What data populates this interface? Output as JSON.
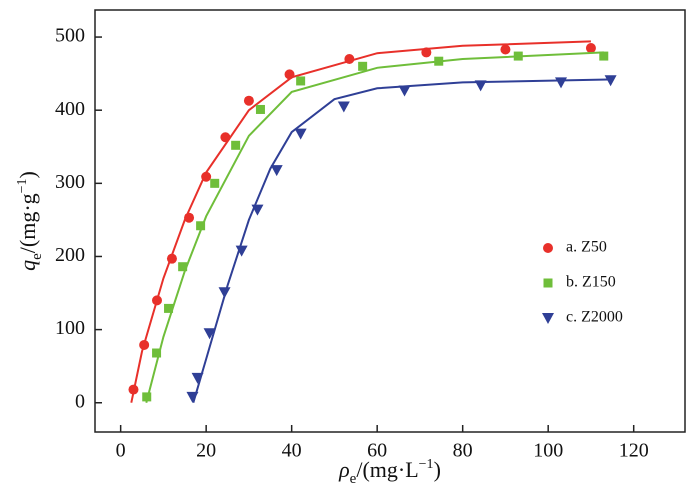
{
  "chart_data": {
    "type": "scatter",
    "xlabel_parts": [
      "ρ",
      "e",
      "/(mg·L",
      "−1",
      ")"
    ],
    "ylabel_parts": [
      "q",
      "e",
      "/(mg·g",
      "−1",
      ")"
    ],
    "xlim": [
      -6,
      132
    ],
    "ylim": [
      -40,
      537
    ],
    "xticks": [
      0,
      20,
      40,
      60,
      80,
      100,
      120
    ],
    "yticks": [
      0,
      100,
      200,
      300,
      400,
      500
    ],
    "legend": "right",
    "series": [
      {
        "name": "a. Z50",
        "color": "#e8302a",
        "marker": "circle",
        "x": [
          3.0,
          5.5,
          8.5,
          12,
          16,
          20,
          24.5,
          30,
          39.5,
          53.5,
          71.5,
          90,
          110
        ],
        "values": [
          18,
          79,
          140,
          197,
          253,
          309,
          363,
          413,
          449,
          470,
          479,
          483,
          485
        ],
        "fit_x": [
          2.5,
          5,
          10,
          15,
          20,
          30,
          40,
          60,
          80,
          110
        ],
        "fit_y": [
          0,
          70,
          170,
          250,
          315,
          400,
          445,
          478,
          488,
          494
        ]
      },
      {
        "name": "b. Z150",
        "color": "#6fbe3a",
        "marker": "square",
        "x": [
          6.1,
          8.4,
          11.2,
          14.5,
          18.7,
          22,
          26.9,
          32.7,
          42.1,
          56.6,
          74.4,
          93,
          113
        ],
        "values": [
          8,
          68,
          129,
          186,
          242,
          300,
          352,
          401,
          440,
          460,
          467,
          474,
          474
        ],
        "fit_x": [
          6,
          10,
          15,
          20,
          30,
          40,
          60,
          80,
          113
        ],
        "fit_y": [
          0,
          90,
          180,
          255,
          365,
          425,
          458,
          470,
          479
        ]
      },
      {
        "name": "c. Z2000",
        "color": "#2f3f96",
        "marker": "triangle-down",
        "x": [
          16.8,
          18,
          20.8,
          24.3,
          28.3,
          32,
          36.5,
          42.1,
          52.2,
          66.4,
          84.2,
          103,
          114.6
        ],
        "values": [
          8,
          34,
          95,
          151,
          208,
          264,
          318,
          368,
          405,
          427,
          434,
          438,
          441
        ],
        "fit_x": [
          17,
          20,
          25,
          30,
          35,
          40,
          50,
          60,
          80,
          114
        ],
        "fit_y": [
          0,
          60,
          160,
          250,
          320,
          370,
          415,
          430,
          438,
          442
        ]
      }
    ]
  }
}
